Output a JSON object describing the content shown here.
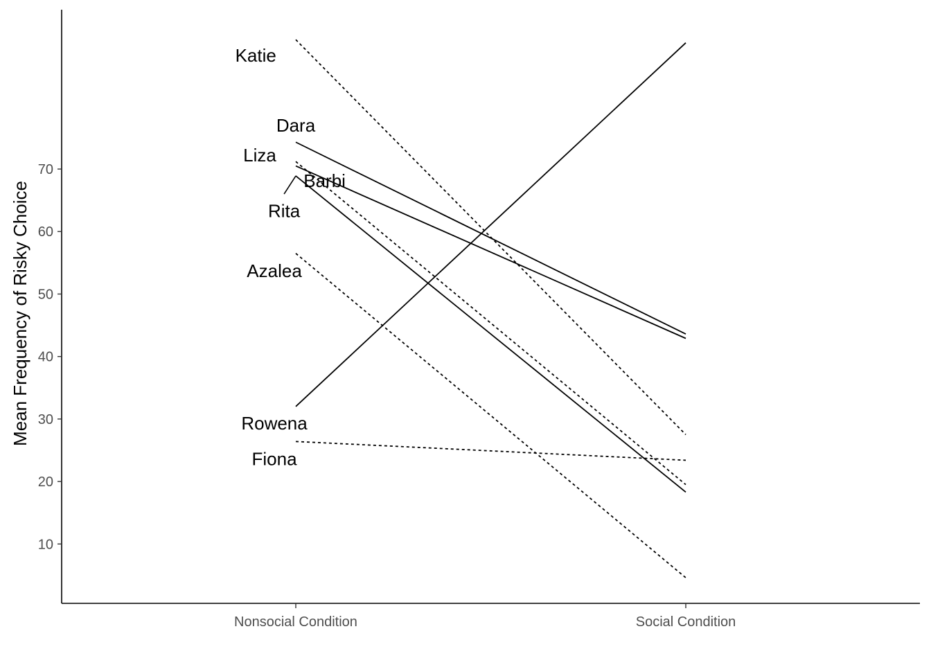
{
  "chart_data": {
    "type": "line",
    "title": "",
    "xlabel": "",
    "ylabel": "Mean Frequency of Risky Choice",
    "categories": [
      "Nonsocial Condition",
      "Social Condition"
    ],
    "yticks": [
      10,
      20,
      30,
      40,
      50,
      60,
      70
    ],
    "ylim": [
      0.5,
      95.5
    ],
    "grid": false,
    "legend": "none",
    "series": [
      {
        "name": "Katie",
        "values": [
          90.7,
          27.5
        ],
        "linetype": "dotted"
      },
      {
        "name": "Dara",
        "values": [
          74.3,
          43.6
        ],
        "linetype": "solid"
      },
      {
        "name": "Liza",
        "values": [
          71.2,
          19.5
        ],
        "linetype": "dotted"
      },
      {
        "name": "Barbi",
        "values": [
          70.5,
          42.9
        ],
        "linetype": "solid"
      },
      {
        "name": "Rita",
        "values": [
          68.9,
          18.3
        ],
        "linetype": "solid"
      },
      {
        "name": "Azalea",
        "values": [
          56.5,
          4.6
        ],
        "linetype": "dotted"
      },
      {
        "name": "Rowena",
        "values": [
          32.0,
          90.2
        ],
        "linetype": "solid"
      },
      {
        "name": "Fiona",
        "values": [
          26.4,
          23.4
        ],
        "linetype": "dotted"
      }
    ],
    "labels": [
      {
        "text": "Katie",
        "x": 0,
        "y": 88.2,
        "anchor": "end",
        "dx": -0.05
      },
      {
        "text": "Dara",
        "x": 0,
        "y": 77.0,
        "anchor": "middle",
        "dx": 0.0
      },
      {
        "text": "Liza",
        "x": 0,
        "y": 72.2,
        "anchor": "end",
        "dx": -0.05
      },
      {
        "text": "Barbi",
        "x": 0,
        "y": 68.1,
        "anchor": "start",
        "dx": 0.02
      },
      {
        "text": "Rita",
        "x": 0,
        "y": 63.3,
        "anchor": "middle",
        "dx": -0.03,
        "leader_to_y": 68.9,
        "leader_from_y": 66.0
      },
      {
        "text": "Azalea",
        "x": 0,
        "y": 53.7,
        "anchor": "middle",
        "dx": -0.055
      },
      {
        "text": "Rowena",
        "x": 0,
        "y": 29.3,
        "anchor": "middle",
        "dx": -0.055
      },
      {
        "text": "Fiona",
        "x": 0,
        "y": 23.6,
        "anchor": "middle",
        "dx": -0.055
      }
    ],
    "colors": {
      "line": "#000000",
      "axis": "#000000",
      "tick_text": "#4d4d4d"
    }
  }
}
